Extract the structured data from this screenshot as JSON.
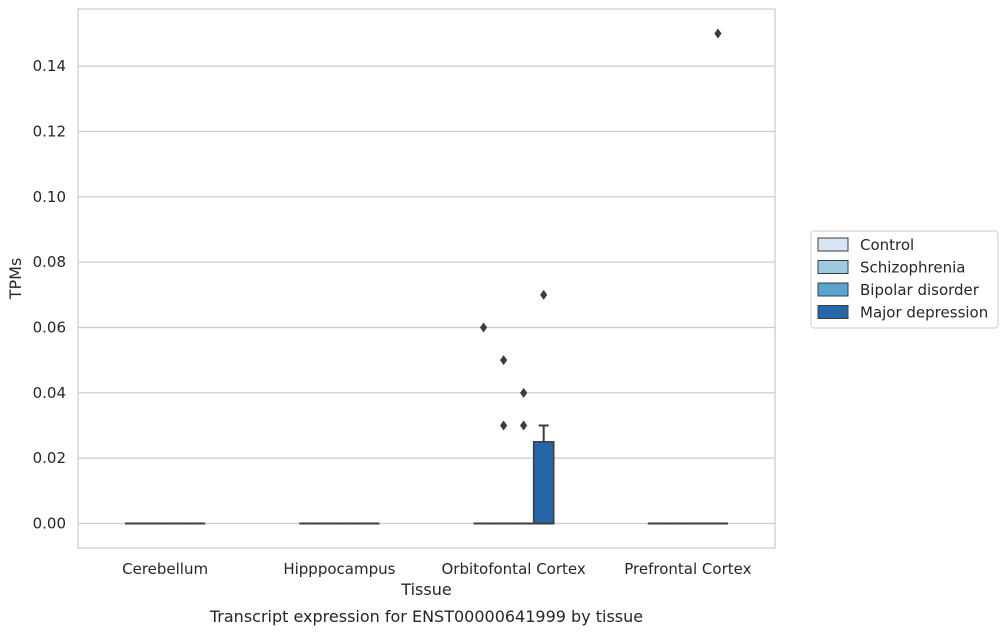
{
  "chart_data": {
    "type": "box",
    "caption": "Transcript expression for ENST00000641999 by tissue",
    "xlabel": "Tissue",
    "ylabel": "TPMs",
    "categories": [
      "Cerebellum",
      "Hipppocampus",
      "Orbitofontal Cortex",
      "Prefrontal Cortex"
    ],
    "ylim": [
      -0.0075,
      0.1575
    ],
    "yticks": [
      0.0,
      0.02,
      0.04,
      0.06,
      0.08,
      0.1,
      0.12,
      0.14
    ],
    "ytick_labels": [
      "0.00",
      "0.02",
      "0.04",
      "0.06",
      "0.08",
      "0.10",
      "0.12",
      "0.14"
    ],
    "grid": "horizontal",
    "legend_position": "right",
    "series": [
      {
        "name": "Control",
        "color": "#d6e6f4",
        "boxes": [
          {
            "category": "Cerebellum",
            "q1": 0,
            "median": 0,
            "q3": 0,
            "whisker_low": 0,
            "whisker_high": 0,
            "outliers": []
          },
          {
            "category": "Hipppocampus",
            "q1": 0,
            "median": 0,
            "q3": 0,
            "whisker_low": 0,
            "whisker_high": 0,
            "outliers": []
          },
          {
            "category": "Orbitofontal Cortex",
            "q1": 0,
            "median": 0,
            "q3": 0,
            "whisker_low": 0,
            "whisker_high": 0,
            "outliers": [
              0.06
            ]
          },
          {
            "category": "Prefrontal Cortex",
            "q1": 0,
            "median": 0,
            "q3": 0,
            "whisker_low": 0,
            "whisker_high": 0,
            "outliers": []
          }
        ]
      },
      {
        "name": "Schizophrenia",
        "color": "#9dc9e1",
        "boxes": [
          {
            "category": "Cerebellum",
            "q1": 0,
            "median": 0,
            "q3": 0,
            "whisker_low": 0,
            "whisker_high": 0,
            "outliers": []
          },
          {
            "category": "Hipppocampus",
            "q1": 0,
            "median": 0,
            "q3": 0,
            "whisker_low": 0,
            "whisker_high": 0,
            "outliers": []
          },
          {
            "category": "Orbitofontal Cortex",
            "q1": 0,
            "median": 0,
            "q3": 0,
            "whisker_low": 0,
            "whisker_high": 0,
            "outliers": [
              0.05,
              0.03
            ]
          },
          {
            "category": "Prefrontal Cortex",
            "q1": 0,
            "median": 0,
            "q3": 0,
            "whisker_low": 0,
            "whisker_high": 0,
            "outliers": []
          }
        ]
      },
      {
        "name": "Bipolar disorder",
        "color": "#5ba3cf",
        "boxes": [
          {
            "category": "Cerebellum",
            "q1": 0,
            "median": 0,
            "q3": 0,
            "whisker_low": 0,
            "whisker_high": 0,
            "outliers": []
          },
          {
            "category": "Hipppocampus",
            "q1": 0,
            "median": 0,
            "q3": 0,
            "whisker_low": 0,
            "whisker_high": 0,
            "outliers": []
          },
          {
            "category": "Orbitofontal Cortex",
            "q1": 0,
            "median": 0,
            "q3": 0,
            "whisker_low": 0,
            "whisker_high": 0,
            "outliers": [
              0.04,
              0.03
            ]
          },
          {
            "category": "Prefrontal Cortex",
            "q1": 0,
            "median": 0,
            "q3": 0,
            "whisker_low": 0,
            "whisker_high": 0,
            "outliers": []
          }
        ]
      },
      {
        "name": "Major depression",
        "color": "#2566a8",
        "boxes": [
          {
            "category": "Cerebellum",
            "q1": 0,
            "median": 0,
            "q3": 0,
            "whisker_low": 0,
            "whisker_high": 0,
            "outliers": []
          },
          {
            "category": "Hipppocampus",
            "q1": 0,
            "median": 0,
            "q3": 0,
            "whisker_low": 0,
            "whisker_high": 0,
            "outliers": []
          },
          {
            "category": "Orbitofontal Cortex",
            "q1": 0,
            "median": 0,
            "q3": 0.025,
            "whisker_low": 0,
            "whisker_high": 0.03,
            "outliers": [
              0.07
            ]
          },
          {
            "category": "Prefrontal Cortex",
            "q1": 0,
            "median": 0,
            "q3": 0,
            "whisker_low": 0,
            "whisker_high": 0,
            "outliers": [
              0.15
            ]
          }
        ]
      }
    ]
  }
}
